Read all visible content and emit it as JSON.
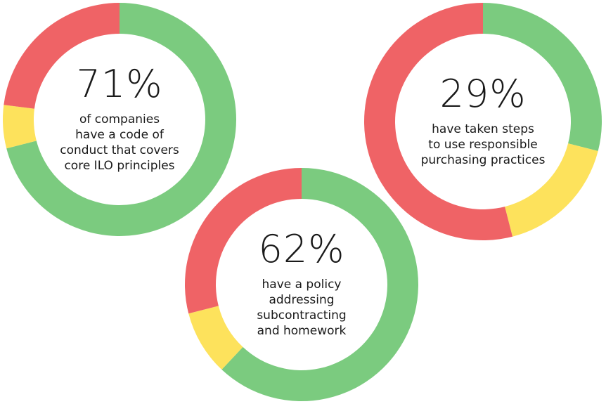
{
  "colors": {
    "green": "#7bcb7f",
    "yellow": "#fde25c",
    "red": "#ef6366"
  },
  "chart_data": [
    {
      "type": "pie",
      "title": "71%",
      "caption_lines": [
        "of companies",
        "have a code of",
        "conduct that covers",
        "core ILO principles"
      ],
      "slices": [
        {
          "color": "green",
          "value": 71
        },
        {
          "color": "yellow",
          "value": 6
        },
        {
          "color": "red",
          "value": 23
        }
      ]
    },
    {
      "type": "pie",
      "title": "29%",
      "caption_lines": [
        "have taken steps",
        "to use responsible",
        "purchasing practices"
      ],
      "slices": [
        {
          "color": "green",
          "value": 29
        },
        {
          "color": "yellow",
          "value": 17
        },
        {
          "color": "red",
          "value": 54
        }
      ]
    },
    {
      "type": "pie",
      "title": "62%",
      "caption_lines": [
        "have a policy",
        "addressing",
        "subcontracting",
        "and homework"
      ],
      "slices": [
        {
          "color": "green",
          "value": 62
        },
        {
          "color": "yellow",
          "value": 9
        },
        {
          "color": "red",
          "value": 29
        }
      ]
    }
  ]
}
